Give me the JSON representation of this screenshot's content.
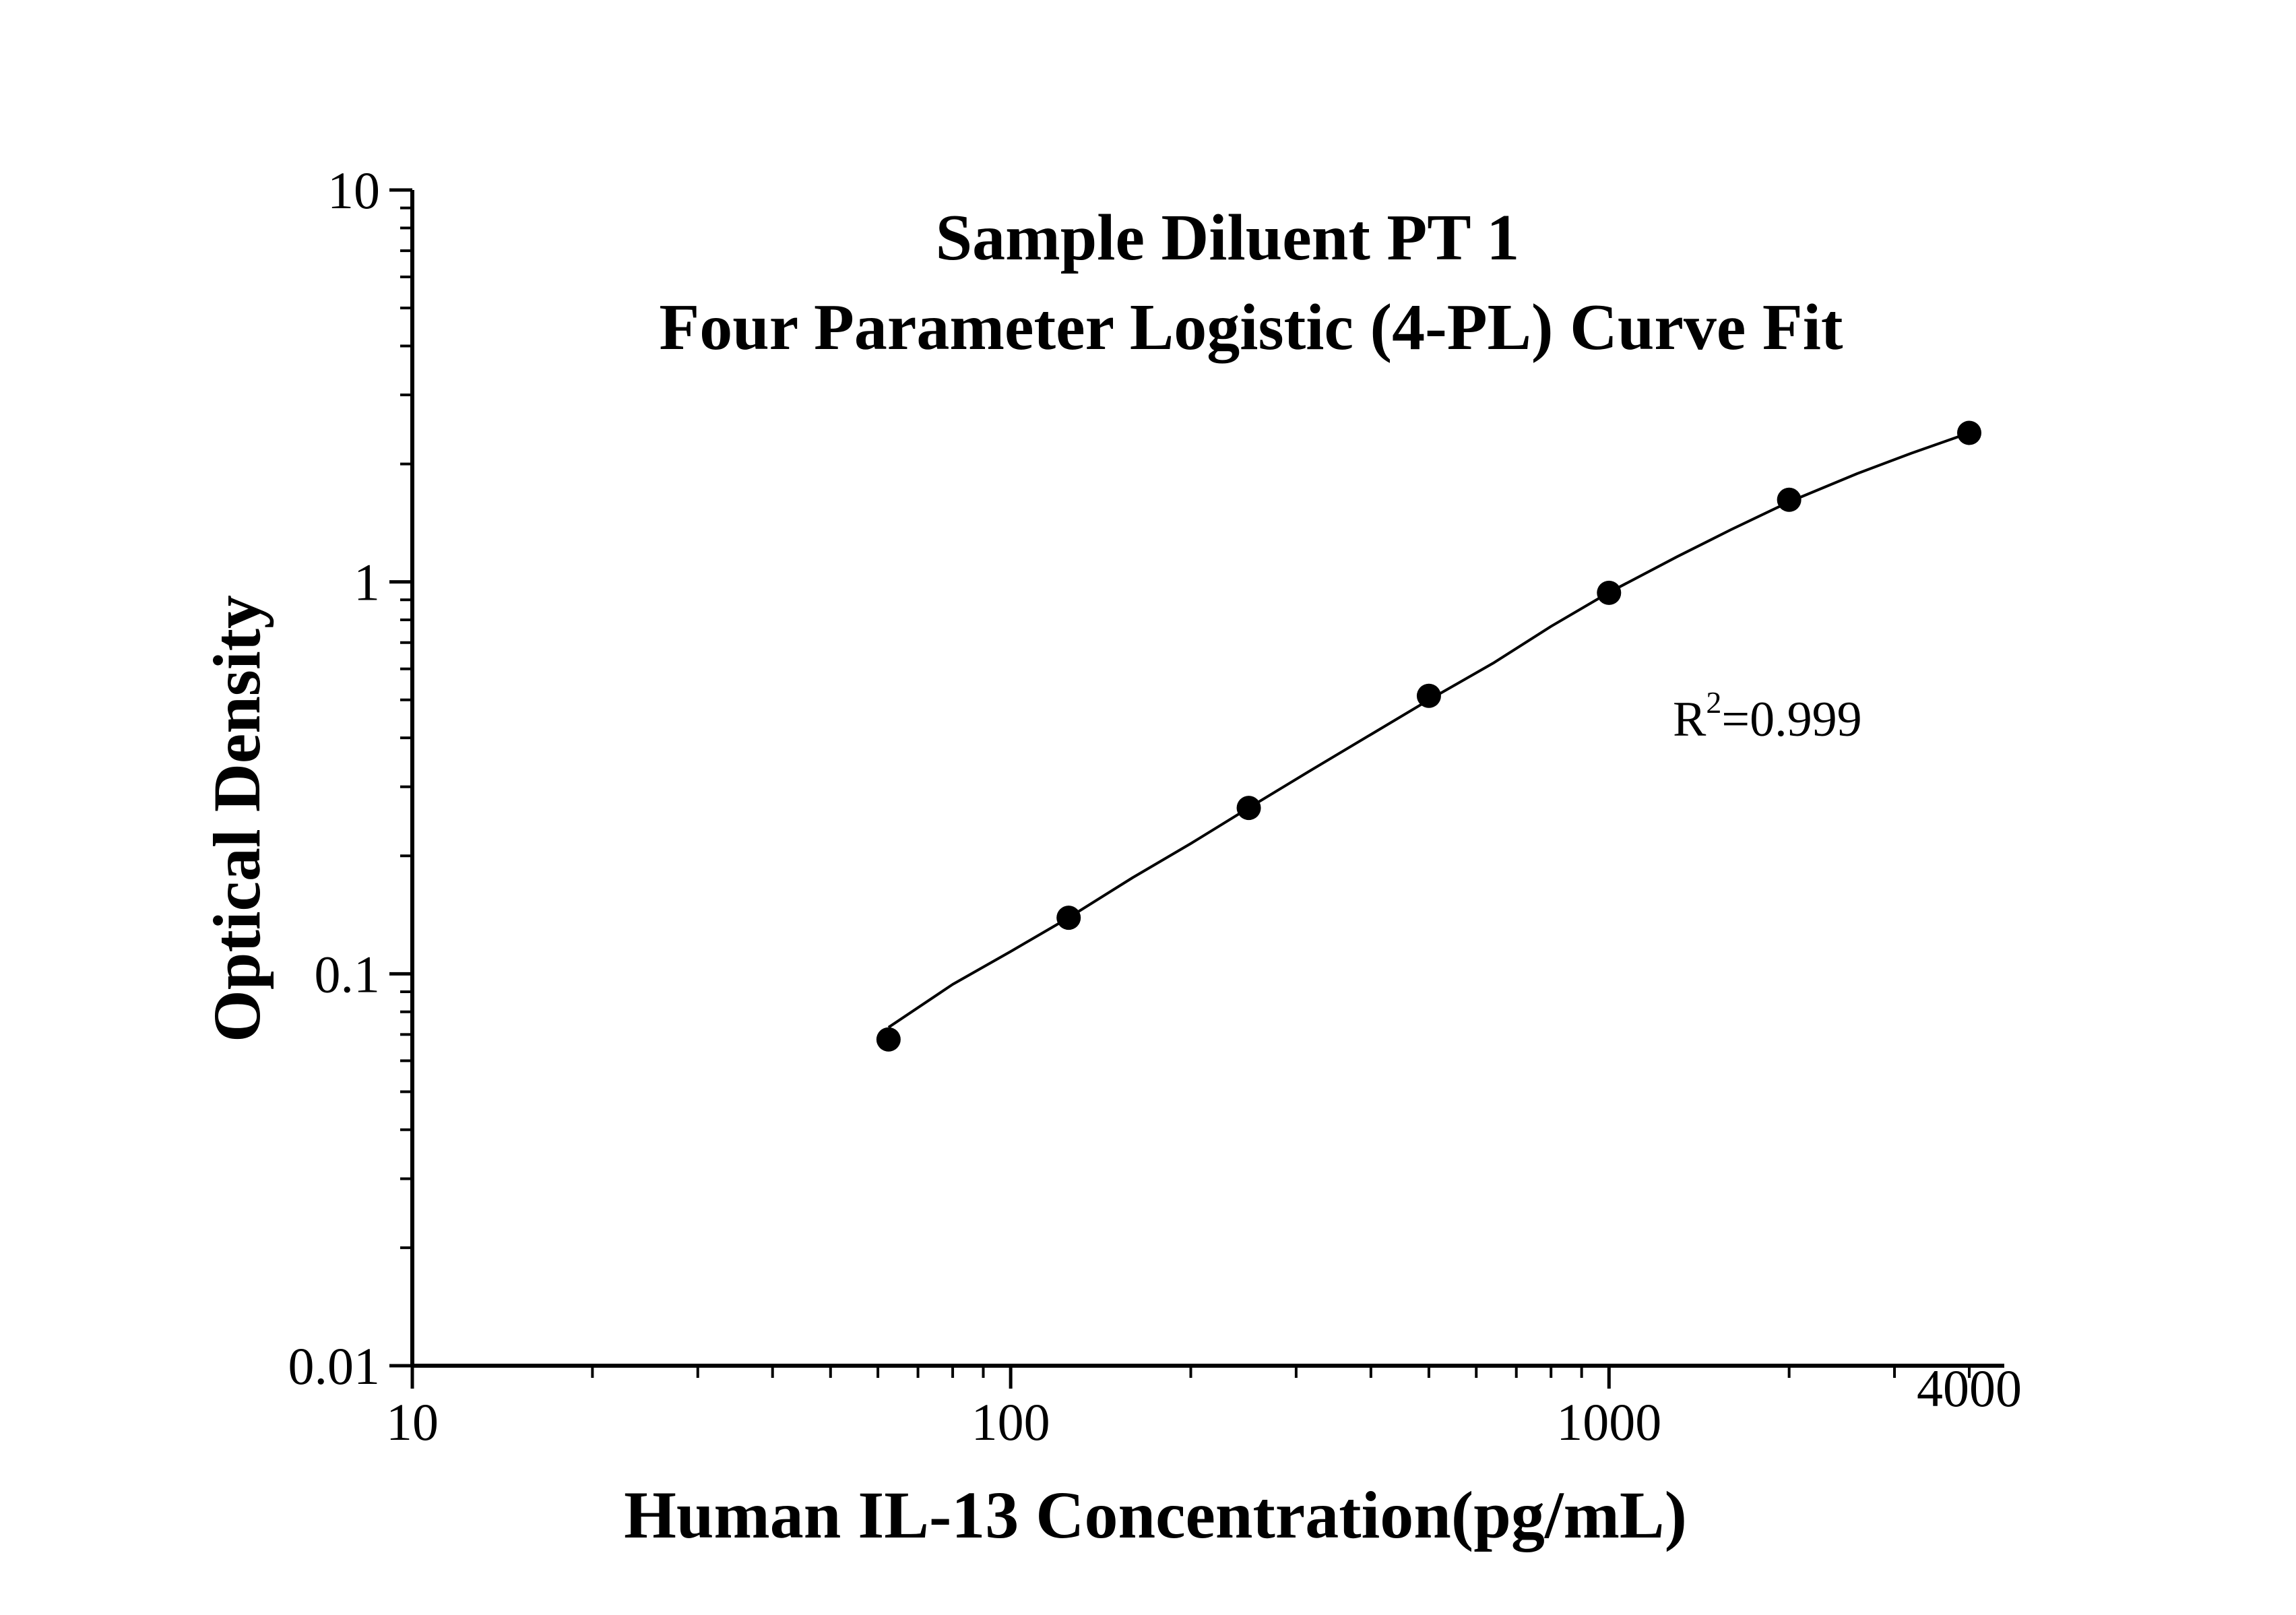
{
  "chart_data": {
    "type": "line",
    "title_line1": "Sample Diluent PT 1",
    "title_line2": "Four Parameter Logistic (4-PL) Curve Fit",
    "xlabel": "Human IL-13 Concentration(pg/mL)",
    "ylabel": "Optical Density",
    "x_scale": "log",
    "y_scale": "log",
    "xlim": [
      10,
      4000
    ],
    "ylim": [
      0.01,
      10
    ],
    "x_tick_labels": [
      "10",
      "100",
      "1000",
      "4000"
    ],
    "y_tick_labels": [
      "0.01",
      "0.1",
      "1",
      "10"
    ],
    "grid": false,
    "annotation": {
      "text_r": "R",
      "text_sup": "2",
      "text_value": "=0.999"
    },
    "series": [
      {
        "kind": "points",
        "x": [
          62.5,
          125,
          250,
          500,
          1000,
          2000,
          4000
        ],
        "y": [
          0.068,
          0.139,
          0.265,
          0.512,
          0.938,
          1.62,
          2.4
        ]
      },
      {
        "kind": "fit-curve",
        "x": [
          62.5,
          80,
          100,
          125,
          160,
          200,
          250,
          320,
          400,
          500,
          640,
          800,
          1000,
          1300,
          1600,
          2000,
          2600,
          3200,
          4000
        ],
        "y": [
          0.073,
          0.094,
          0.114,
          0.139,
          0.176,
          0.215,
          0.265,
          0.333,
          0.408,
          0.5,
          0.62,
          0.77,
          0.94,
          1.16,
          1.36,
          1.6,
          1.89,
          2.13,
          2.4
        ]
      }
    ]
  }
}
